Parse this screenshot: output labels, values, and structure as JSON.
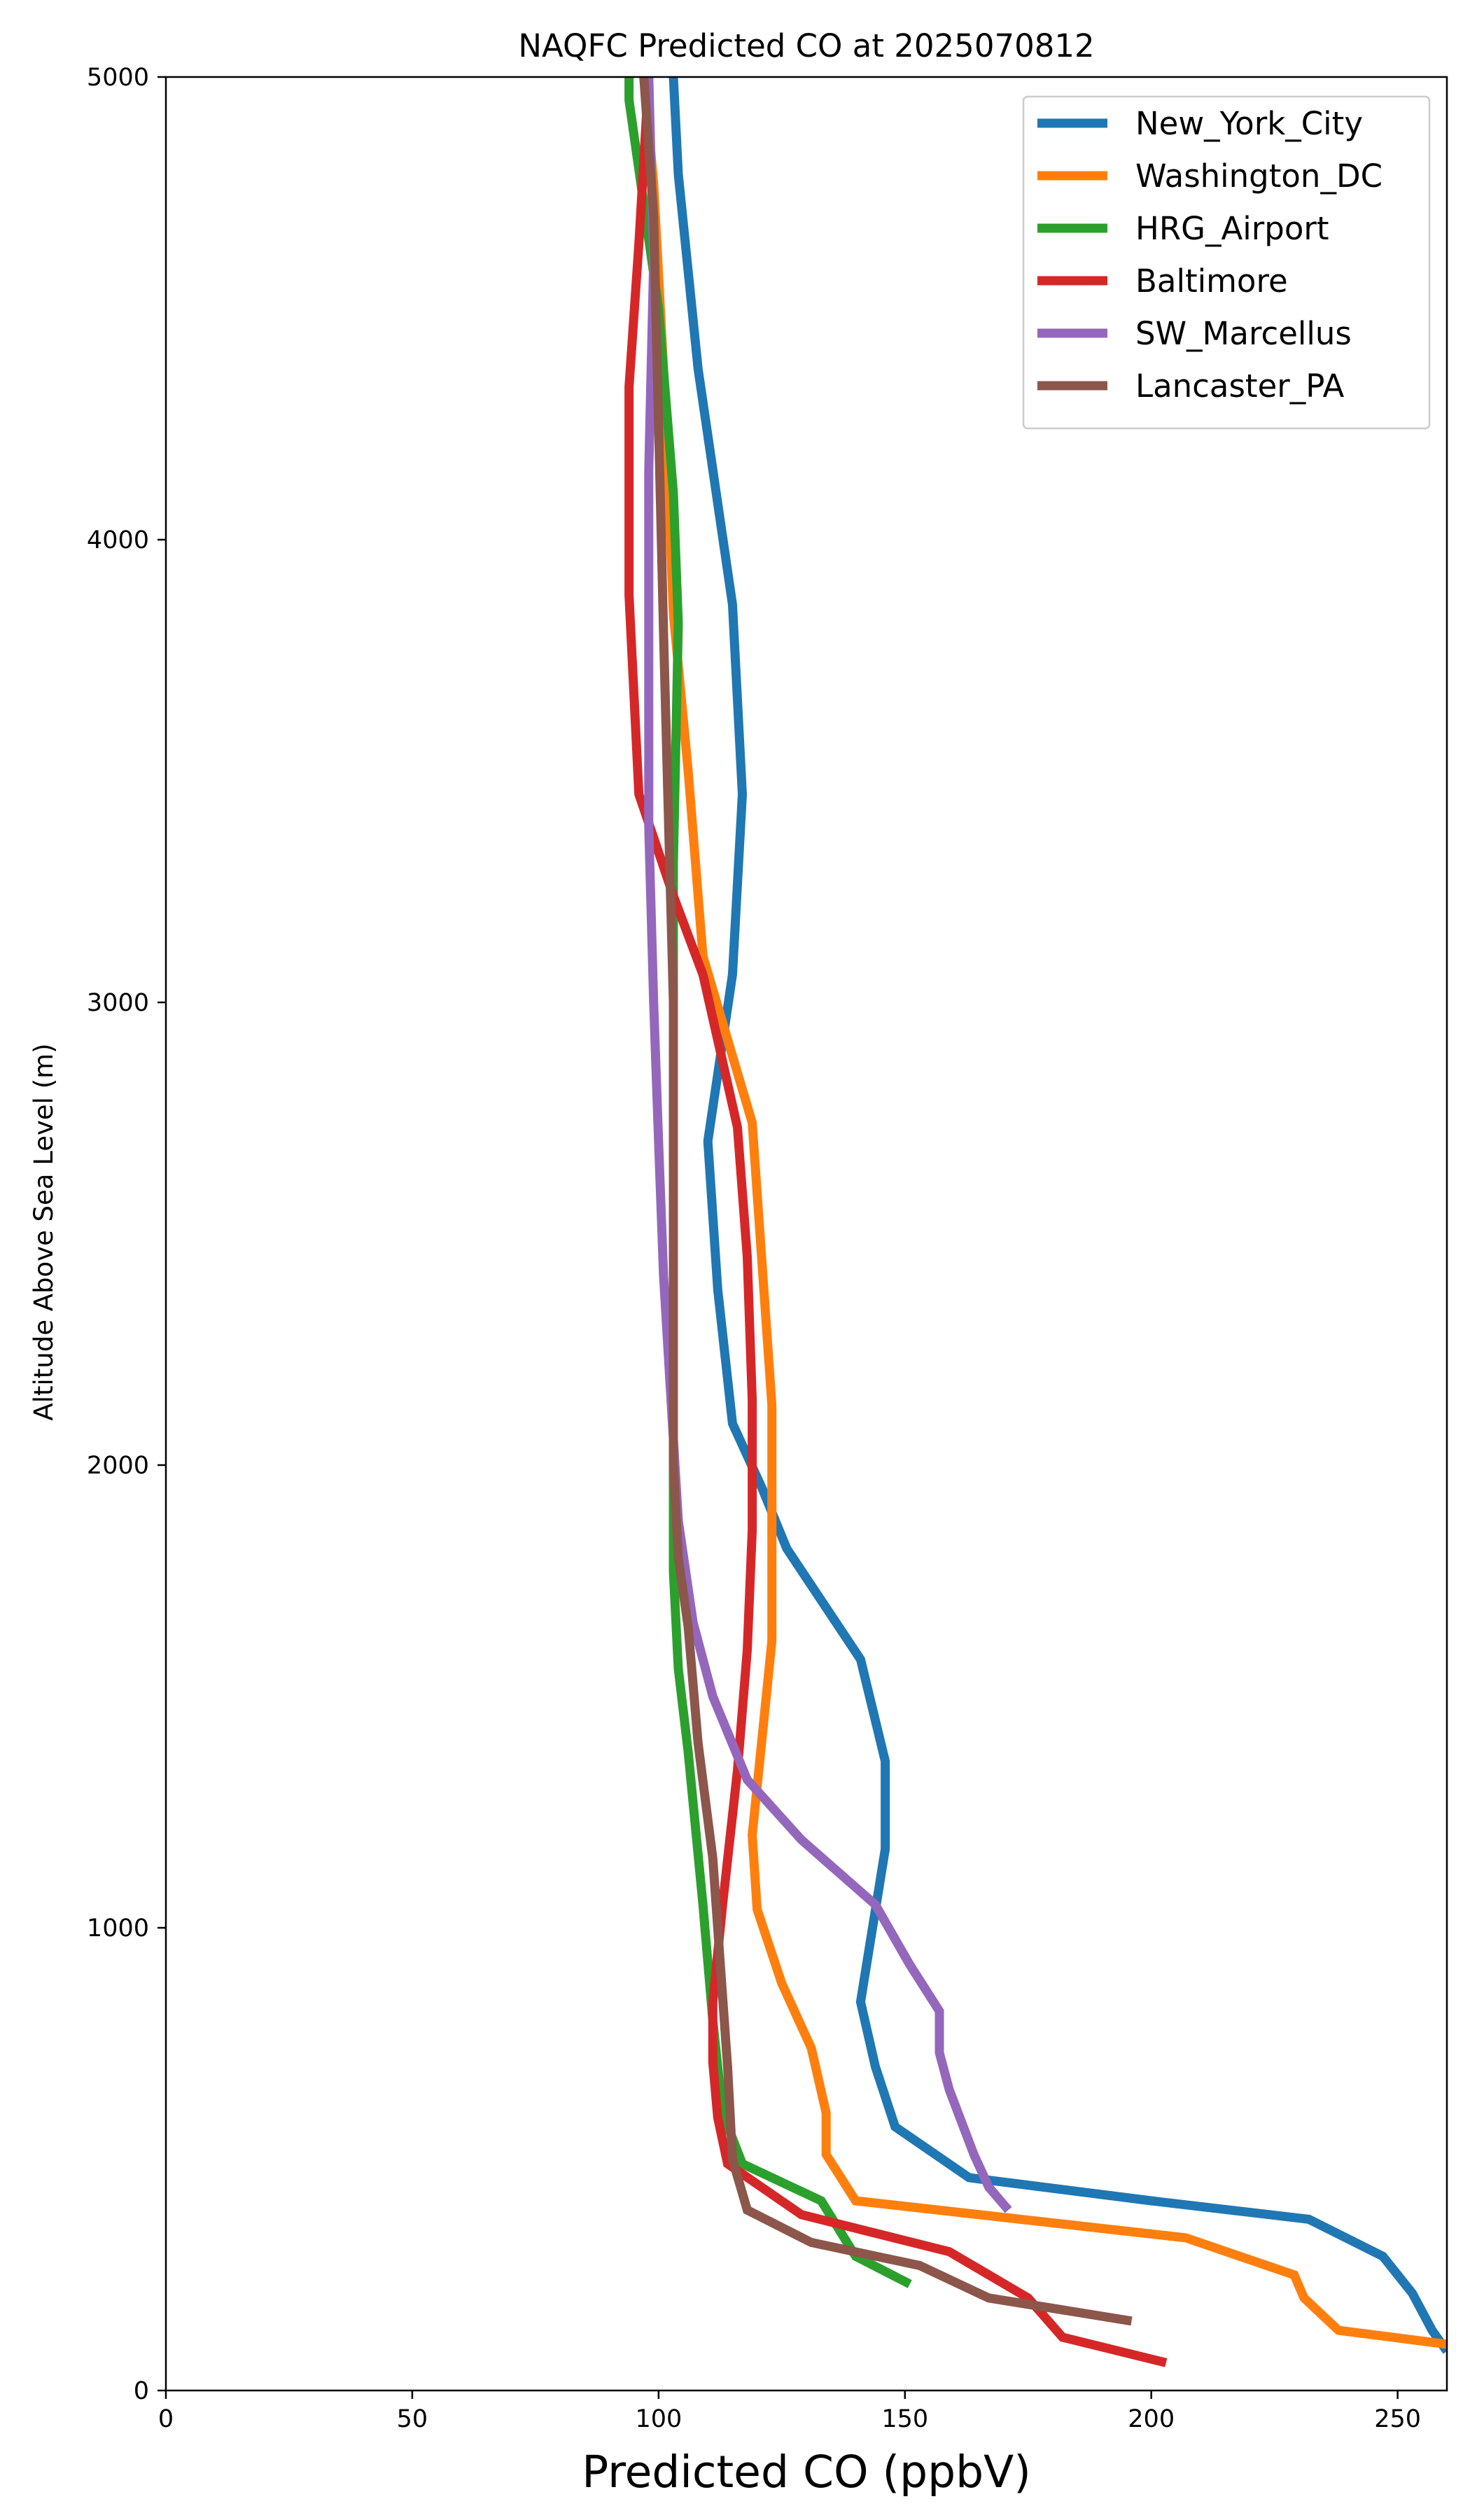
{
  "chart_data": {
    "type": "line",
    "title": "NAQFC Predicted CO at 2025070812",
    "xlabel": "Predicted CO (ppbV)",
    "ylabel": "Altitude Above Sea Level (m)",
    "xlim": [
      0,
      260
    ],
    "ylim": [
      0,
      5000
    ],
    "xticks": [
      0,
      50,
      100,
      150,
      200,
      250
    ],
    "yticks": [
      0,
      1000,
      2000,
      3000,
      4000,
      5000
    ],
    "grid": false,
    "legend_position": "top-right",
    "series": [
      {
        "name": "New_York_City",
        "color": "#1f77b4",
        "points": [
          [
            260,
            85
          ],
          [
            257,
            130
          ],
          [
            253,
            210
          ],
          [
            247,
            290
          ],
          [
            232,
            370
          ],
          [
            200,
            410
          ],
          [
            163,
            460
          ],
          [
            148,
            570
          ],
          [
            144,
            700
          ],
          [
            141,
            840
          ],
          [
            146,
            1170
          ],
          [
            146,
            1360
          ],
          [
            141,
            1580
          ],
          [
            126,
            1820
          ],
          [
            121,
            1950
          ],
          [
            115,
            2090
          ],
          [
            112,
            2380
          ],
          [
            110,
            2700
          ],
          [
            115,
            3060
          ],
          [
            117,
            3450
          ],
          [
            115,
            3860
          ],
          [
            108,
            4370
          ],
          [
            104,
            4790
          ],
          [
            103,
            5000
          ]
        ]
      },
      {
        "name": "Washington_DC",
        "color": "#ff7f0e",
        "points": [
          [
            260,
            100
          ],
          [
            238,
            130
          ],
          [
            231,
            200
          ],
          [
            229,
            250
          ],
          [
            207,
            330
          ],
          [
            140,
            410
          ],
          [
            134,
            510
          ],
          [
            134,
            600
          ],
          [
            131,
            740
          ],
          [
            125,
            880
          ],
          [
            120,
            1040
          ],
          [
            119,
            1200
          ],
          [
            123,
            1620
          ],
          [
            123,
            2130
          ],
          [
            119,
            2740
          ],
          [
            109,
            3100
          ],
          [
            106,
            3500
          ],
          [
            103,
            3840
          ],
          [
            101,
            4370
          ],
          [
            99,
            4770
          ],
          [
            97,
            5000
          ]
        ]
      },
      {
        "name": "HRG_Airport",
        "color": "#2ca02c",
        "points": [
          [
            151,
            230
          ],
          [
            140,
            290
          ],
          [
            133,
            410
          ],
          [
            117,
            490
          ],
          [
            113,
            600
          ],
          [
            111,
            800
          ],
          [
            109,
            1050
          ],
          [
            106,
            1380
          ],
          [
            104,
            1560
          ],
          [
            103,
            1770
          ],
          [
            103,
            2000
          ],
          [
            103,
            2500
          ],
          [
            103,
            3000
          ],
          [
            103,
            3300
          ],
          [
            104,
            3820
          ],
          [
            103,
            4100
          ],
          [
            100,
            4500
          ],
          [
            96,
            4800
          ],
          [
            94,
            4950
          ],
          [
            94,
            5000
          ]
        ]
      },
      {
        "name": "Baltimore",
        "color": "#d62728",
        "points": [
          [
            203,
            60
          ],
          [
            182,
            115
          ],
          [
            175,
            200
          ],
          [
            159,
            300
          ],
          [
            129,
            380
          ],
          [
            114,
            490
          ],
          [
            112,
            590
          ],
          [
            111,
            710
          ],
          [
            111,
            840
          ],
          [
            113,
            1050
          ],
          [
            116,
            1340
          ],
          [
            118,
            1600
          ],
          [
            119,
            1860
          ],
          [
            119,
            2140
          ],
          [
            118,
            2450
          ],
          [
            116,
            2730
          ],
          [
            109,
            3060
          ],
          [
            103,
            3230
          ],
          [
            96,
            3450
          ],
          [
            94,
            3880
          ],
          [
            94,
            4330
          ],
          [
            96,
            4640
          ],
          [
            98,
            5000
          ]
        ]
      },
      {
        "name": "SW_Marcellus",
        "color": "#9467bd",
        "points": [
          [
            171,
            390
          ],
          [
            167,
            440
          ],
          [
            164,
            510
          ],
          [
            159,
            650
          ],
          [
            157,
            730
          ],
          [
            157,
            820
          ],
          [
            151,
            920
          ],
          [
            144,
            1050
          ],
          [
            129,
            1190
          ],
          [
            118,
            1320
          ],
          [
            111,
            1500
          ],
          [
            107,
            1660
          ],
          [
            104,
            1880
          ],
          [
            101,
            2410
          ],
          [
            100,
            2700
          ],
          [
            99,
            3000
          ],
          [
            98,
            3380
          ],
          [
            98,
            3700
          ],
          [
            98,
            4150
          ],
          [
            99,
            4600
          ],
          [
            98,
            5000
          ]
        ]
      },
      {
        "name": "Lancaster_PA",
        "color": "#8c564b",
        "points": [
          [
            196,
            150
          ],
          [
            167,
            200
          ],
          [
            153,
            270
          ],
          [
            131,
            320
          ],
          [
            118,
            390
          ],
          [
            115,
            500
          ],
          [
            114,
            700
          ],
          [
            112,
            1000
          ],
          [
            111,
            1150
          ],
          [
            108,
            1400
          ],
          [
            106,
            1650
          ],
          [
            104,
            1800
          ],
          [
            103,
            2000
          ],
          [
            103,
            2300
          ],
          [
            103,
            2600
          ],
          [
            103,
            3000
          ],
          [
            102,
            3400
          ],
          [
            101,
            3800
          ],
          [
            100,
            4250
          ],
          [
            99,
            4700
          ],
          [
            97,
            5000
          ]
        ]
      }
    ]
  }
}
